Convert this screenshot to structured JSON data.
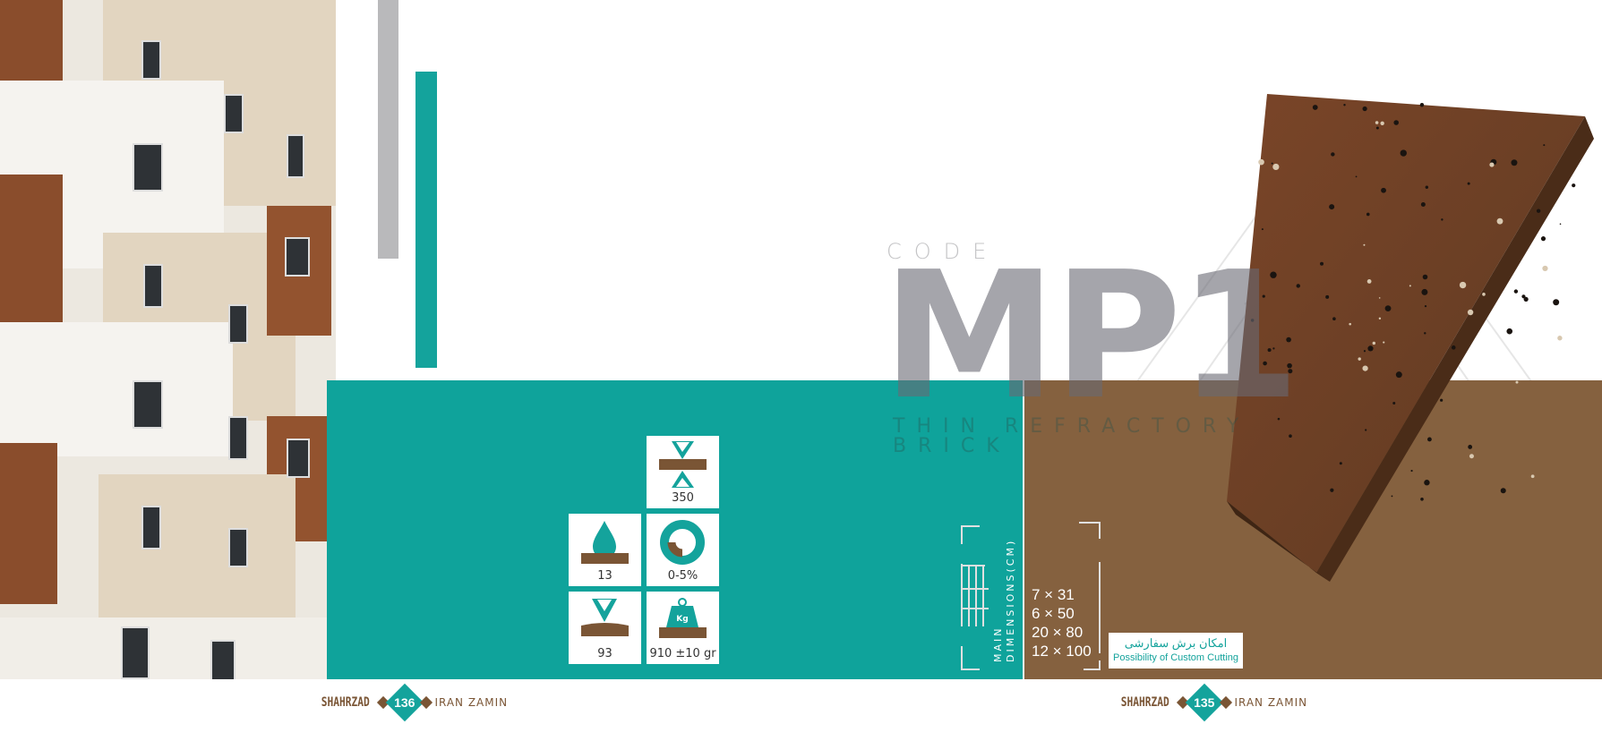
{
  "code_label": "CODE",
  "product_code": "MP1",
  "product_name_line1": "THIN REFRACTORY",
  "product_name_line2": "BRICK",
  "specs": [
    {
      "icon": "compression-strength-icon",
      "value": "350"
    },
    {
      "icon": "water-absorption-icon",
      "value": "13"
    },
    {
      "icon": "tolerance-chart-icon",
      "value": "0-5%"
    },
    {
      "icon": "hardness-icon",
      "value": "93"
    },
    {
      "icon": "weight-icon",
      "value": "910 ±10 gr",
      "icon_text": "Kg"
    }
  ],
  "dimensions": {
    "label_line1": "MAIN",
    "label_line2": "DIMENSIONS(CM)",
    "sizes": [
      "7 × 31",
      "6 × 50",
      "20 × 80",
      "12 × 100"
    ]
  },
  "custom_cutting": {
    "fa": "امکان برش سفارشی",
    "en": "Possibility of Custom Cutting"
  },
  "footer": {
    "left": {
      "brand": "SHAHRZAD",
      "page": "136",
      "partner": "IRAN ZAMIN"
    },
    "right": {
      "brand": "SHAHRZAD",
      "page": "135",
      "partner": "IRAN ZAMIN"
    }
  },
  "colors": {
    "teal": "#0fa39b",
    "brown": "#85613f",
    "gray": "#b9b9bb"
  }
}
